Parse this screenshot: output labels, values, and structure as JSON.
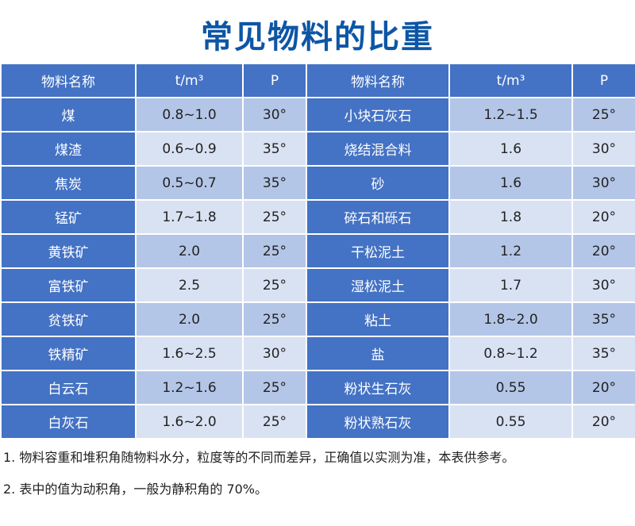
{
  "title": "常见物料的比重",
  "colors": {
    "header": "#4472c4",
    "row_dark": "#b4c6e7",
    "row_light": "#d9e2f3",
    "title": "#0d56a6"
  },
  "headers": [
    "物料名称",
    "t/m³",
    "P",
    "物料名称",
    "t/m³",
    "P"
  ],
  "rows": [
    [
      "煤",
      "0.8~1.0",
      "30°",
      "小块石灰石",
      "1.2~1.5",
      "25°"
    ],
    [
      "煤渣",
      "0.6~0.9",
      "35°",
      "烧结混合料",
      "1.6",
      "30°"
    ],
    [
      "焦炭",
      "0.5~0.7",
      "35°",
      "砂",
      "1.6",
      "30°"
    ],
    [
      "锰矿",
      "1.7~1.8",
      "25°",
      "碎石和砾石",
      "1.8",
      "20°"
    ],
    [
      "黄铁矿",
      "2.0",
      "25°",
      "干松泥土",
      "1.2",
      "20°"
    ],
    [
      "富铁矿",
      "2.5",
      "25°",
      "湿松泥土",
      "1.7",
      "30°"
    ],
    [
      "贫铁矿",
      "2.0",
      "25°",
      "粘土",
      "1.8~2.0",
      "35°"
    ],
    [
      "铁精矿",
      "1.6~2.5",
      "30°",
      "盐",
      "0.8~1.2",
      "35°"
    ],
    [
      "白云石",
      "1.2~1.6",
      "25°",
      "粉状生石灰",
      "0.55",
      "20°"
    ],
    [
      "白灰石",
      "1.6~2.0",
      "25°",
      "粉状熟石灰",
      "0.55",
      "20°"
    ]
  ],
  "notes": [
    "1. 物料容重和堆积角随物料水分，粒度等的不同而差异，正确值以实测为准，本表供参考。",
    "2. 表中的值为动积角，一般为静积角的 70%。"
  ]
}
